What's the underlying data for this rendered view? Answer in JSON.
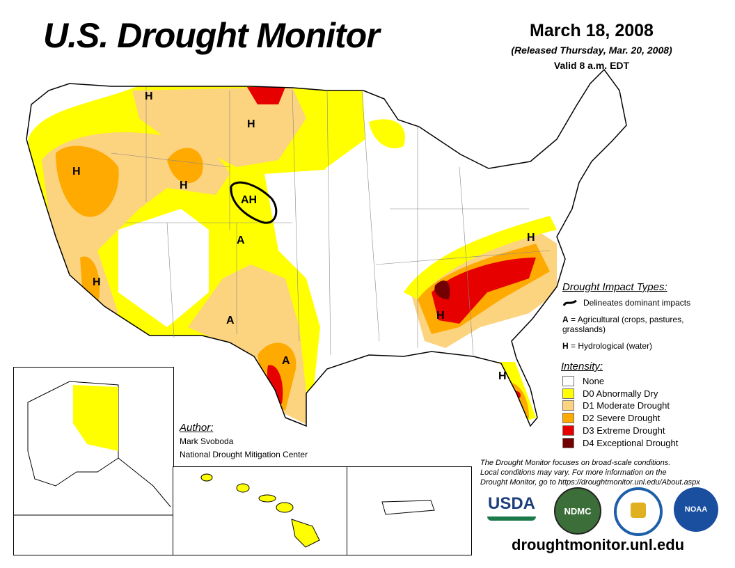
{
  "header": {
    "title": "U.S. Drought Monitor",
    "date": "March 18, 2008",
    "released": "(Released Thursday, Mar. 20, 2008)",
    "valid": "Valid 8 a.m. EDT"
  },
  "map_labels": {
    "h1": "H",
    "h2": "H",
    "h3": "H",
    "h4": "H",
    "h5": "H",
    "ah": "AH",
    "a1": "A",
    "a2": "A",
    "a3": "A",
    "h6": "H",
    "h7": "H",
    "h8": "H"
  },
  "impact": {
    "title": "Drought Impact Types:",
    "delineates": "Delineates dominant impacts",
    "a_key": "A",
    "a_text": "= Agricultural (crops, pastures, grasslands)",
    "h_key": "H",
    "h_text": "= Hydrological (water)"
  },
  "intensity": {
    "title": "Intensity:",
    "items": [
      {
        "label": "None",
        "color": "#ffffff"
      },
      {
        "label": "D0 Abnormally Dry",
        "color": "#ffff00"
      },
      {
        "label": "D1 Moderate Drought",
        "color": "#fcd37f"
      },
      {
        "label": "D2 Severe Drought",
        "color": "#ffaa00"
      },
      {
        "label": "D3 Extreme Drought",
        "color": "#e60000"
      },
      {
        "label": "D4 Exceptional Drought",
        "color": "#730000"
      }
    ]
  },
  "author": {
    "title": "Author:",
    "name": "Mark Svoboda",
    "org": "National Drought Mitigation Center"
  },
  "note": [
    "The Drought Monitor focuses on broad-scale conditions.",
    "Local conditions may vary. For more information on the",
    "Drought Monitor, go to https://droughtmonitor.unl.edu/About.aspx"
  ],
  "logos": {
    "usda": "USDA",
    "ndmc": "NDMC",
    "noaa": "NOAA"
  },
  "footer_url": "droughtmonitor.unl.edu"
}
